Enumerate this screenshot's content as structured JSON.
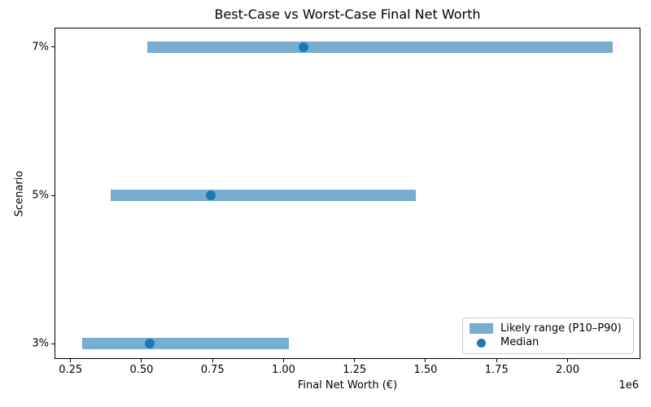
{
  "chart_data": {
    "type": "bar",
    "orientation": "horizontal",
    "title": "Best-Case vs Worst-Case Final Net Worth",
    "xlabel": "Final Net Worth (€)",
    "ylabel": "Scenario",
    "x_scale_offset_label": "1e6",
    "categories": [
      "7%",
      "5%",
      "3%"
    ],
    "series": [
      {
        "name": "Likely range (P10–P90)",
        "kind": "range_bar",
        "p10": [
          520000,
          390000,
          290000
        ],
        "p90": [
          2160000,
          1465000,
          1020000
        ],
        "color": "#78add2"
      },
      {
        "name": "Median",
        "kind": "point",
        "values": [
          1070000,
          745000,
          530000
        ],
        "color": "#1f77b4"
      }
    ],
    "xlim": [
      196500,
      2253500
    ],
    "xticks": {
      "values": [
        250000,
        500000,
        750000,
        1000000,
        1250000,
        1500000,
        1750000,
        2000000
      ],
      "labels": [
        "0.25",
        "0.50",
        "0.75",
        "1.00",
        "1.25",
        "1.50",
        "1.75",
        "2.00"
      ]
    },
    "grid": false,
    "legend": {
      "position": "lower right",
      "items": [
        {
          "label": "Likely range (P10–P90)",
          "marker": "bar",
          "color": "#78add2"
        },
        {
          "label": "Median",
          "marker": "dot",
          "color": "#1f77b4"
        }
      ]
    }
  }
}
